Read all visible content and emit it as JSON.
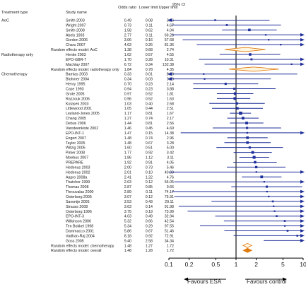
{
  "chart_data": {
    "type": "forest",
    "x_scale": "log",
    "xlim": [
      0.1,
      10
    ],
    "x_ticks": [
      0.1,
      0.2,
      0.5,
      1,
      2,
      5,
      10
    ],
    "x_tick_labels": [
      "0.1",
      "0.2",
      "0.5",
      "1",
      "2",
      "5",
      "10"
    ],
    "reference_line": 1,
    "header": {
      "ci_label": "95% CI",
      "group": "Treatment type",
      "study": "Study name",
      "or": "Odds ratio",
      "lower": "Lower limit",
      "upper": "Upper limit"
    },
    "left_label": "Favours ESA",
    "right_label": "Favours control",
    "colors": {
      "study": "#1f2f9a",
      "summary": "#e07b10",
      "text": "#1a1a1a",
      "summary_fill": "#fff6e0"
    },
    "rows": [
      {
        "kind": "study",
        "group": "AoC",
        "name": "Smith 2003",
        "or": "0.49",
        "lo": "0.08",
        "hi": "3.16",
        "w": 0.45
      },
      {
        "kind": "study",
        "name": "Wright 2007",
        "or": "0.73",
        "lo": "0.11",
        "hi": "4.67",
        "w": 0.55
      },
      {
        "kind": "study",
        "name": "Smith 2008",
        "or": "1.58",
        "lo": "0.62",
        "hi": "4.04",
        "w": 0.9
      },
      {
        "kind": "study",
        "name": "Abels 1993",
        "or": "2.77",
        "lo": "0.11",
        "hi": "69.26",
        "w": 0.35
      },
      {
        "kind": "study",
        "name": "Gordon 2006",
        "or": "3.06",
        "lo": "0.16",
        "hi": "57.68",
        "w": 0.35
      },
      {
        "kind": "study",
        "name": "Charu 2007",
        "or": "4.63",
        "lo": "0.26",
        "hi": "81.36",
        "w": 0.35
      },
      {
        "kind": "summary",
        "name": "Random effects model: AoC",
        "or": "1.38",
        "lo": "0.68",
        "hi": "2.74"
      },
      {
        "kind": "study",
        "group": "Radiotherapy only",
        "name": "Henke 2003",
        "or": "1.62",
        "lo": "0.57",
        "hi": "4.55",
        "w": 0.9
      },
      {
        "kind": "study",
        "name": "EPO-GBR-7",
        "or": "1.70",
        "lo": "0.28",
        "hi": "10.31",
        "w": 0.6
      },
      {
        "kind": "study",
        "name": "Machtay 2007",
        "or": "6.72",
        "lo": "0.34",
        "hi": "132.38",
        "w": 0.35
      },
      {
        "kind": "summary",
        "name": "Random effects model: radiotherapy only",
        "or": "1.84",
        "lo": "0.78",
        "hi": "4.35"
      },
      {
        "kind": "study",
        "group": "Chemotherapy",
        "name": "Bamias 2003",
        "or": "0.33",
        "lo": "0.01",
        "hi": "8.20",
        "w": 0.35
      },
      {
        "kind": "study",
        "name": "Blohmer 2004",
        "or": "0.34",
        "lo": "0.03",
        "hi": "3.30",
        "w": 0.4
      },
      {
        "kind": "study",
        "name": "Henry 1995",
        "or": "0.70",
        "lo": "0.23",
        "hi": "2.14",
        "w": 0.7
      },
      {
        "kind": "study",
        "name": "Case 1993",
        "or": "0.94",
        "lo": "0.23",
        "hi": "3.88",
        "w": 0.6
      },
      {
        "kind": "study",
        "name": "Grote 2005",
        "or": "0.97",
        "lo": "0.52",
        "hi": "1.81",
        "w": 1.0
      },
      {
        "kind": "study",
        "name": "Razzouk 2006",
        "or": "0.96",
        "lo": "0.52",
        "hi": "1.63",
        "w": 1.0
      },
      {
        "kind": "study",
        "name": "Kotasek 2003",
        "or": "1.03",
        "lo": "0.40",
        "hi": "2.68",
        "w": 0.8
      },
      {
        "kind": "study",
        "name": "Littlewood 2001",
        "or": "1.05",
        "lo": "0.44",
        "hi": "2.51",
        "w": 0.8
      },
      {
        "kind": "study",
        "name": "Leyland-Jones 2005",
        "or": "1.17",
        "lo": "0.81",
        "hi": "1.67",
        "w": 1.3
      },
      {
        "kind": "study",
        "name": "Chang 2005",
        "or": "1.27",
        "lo": "0.74",
        "hi": "2.17",
        "w": 1.0
      },
      {
        "kind": "study",
        "name": "Debus 2006",
        "or": "1.44",
        "lo": "0.81",
        "hi": "2.56",
        "w": 1.0
      },
      {
        "kind": "study",
        "name": "Vansteenkiste 2002",
        "or": "1.46",
        "lo": "0.45",
        "hi": "4.69",
        "w": 0.7
      },
      {
        "kind": "study",
        "name": "EPO-INT-1",
        "or": "1.47",
        "lo": "0.15",
        "hi": "14.38",
        "w": 0.4
      },
      {
        "kind": "study",
        "name": "Engert 2007",
        "or": "1.48",
        "lo": "0.74",
        "hi": "2.96",
        "w": 0.9
      },
      {
        "kind": "study",
        "name": "Taylor 2005",
        "or": "1.48",
        "lo": "0.67",
        "hi": "3.28",
        "w": 0.9
      },
      {
        "kind": "study",
        "name": "Witzig 2005",
        "or": "1.60",
        "lo": "0.51",
        "hi": "5.00",
        "w": 0.7
      },
      {
        "kind": "study",
        "name": "Pirker 2008",
        "or": "1.77",
        "lo": "0.92",
        "hi": "3.42",
        "w": 1.0
      },
      {
        "kind": "study",
        "name": "Moebus 2007",
        "or": "1.86",
        "lo": "1.12",
        "hi": "3.11",
        "w": 1.1
      },
      {
        "kind": "study",
        "name": "PREPARE",
        "or": "1.92",
        "lo": "0.91",
        "hi": "4.05",
        "w": 0.9
      },
      {
        "kind": "study",
        "name": "Hedenus 2003",
        "or": "2.00",
        "lo": "0.73",
        "hi": "5.46",
        "w": 0.8
      },
      {
        "kind": "study",
        "name": "Hedenus 2002",
        "or": "2.01",
        "lo": "0.10",
        "hi": "40.00",
        "w": 0.35
      },
      {
        "kind": "study",
        "name": "Aapro 2008a",
        "or": "2.41",
        "lo": "1.22",
        "hi": "4.76",
        "w": 1.0
      },
      {
        "kind": "study",
        "name": "Thatcher 1999",
        "or": "2.63",
        "lo": "0.12",
        "hi": "56.05",
        "w": 0.35
      },
      {
        "kind": "study",
        "name": "Thomas 2008",
        "or": "2.87",
        "lo": "0.85",
        "hi": "9.66",
        "w": 0.7
      },
      {
        "kind": "study",
        "name": "Throuvalas 2000",
        "or": "2.89",
        "lo": "0.11",
        "hi": "74.17",
        "w": 0.35
      },
      {
        "kind": "study",
        "name": "Osterborg 2005",
        "or": "3.07",
        "lo": "0.12",
        "hi": "75.91",
        "w": 0.35
      },
      {
        "kind": "study",
        "name": "Savonije 2005",
        "or": "3.53",
        "lo": "0.43",
        "hi": "29.11",
        "w": 0.5
      },
      {
        "kind": "study",
        "name": "Strauss 2008",
        "or": "3.63",
        "lo": "0.14",
        "hi": "91.98",
        "w": 0.35
      },
      {
        "kind": "study",
        "name": "Osterborg 1996",
        "or": "3.75",
        "lo": "0.19",
        "hi": "73.99",
        "w": 0.35
      },
      {
        "kind": "study",
        "name": "EPO-INT-3",
        "or": "4.03",
        "lo": "0.49",
        "hi": "32.94",
        "w": 0.5
      },
      {
        "kind": "study",
        "name": "Wilkinson 2006",
        "or": "5.32",
        "lo": "0.66",
        "hi": "42.54",
        "w": 0.5
      },
      {
        "kind": "study",
        "name": "Ten Bokkel 1998",
        "or": "5.34",
        "lo": "0.29",
        "hi": "97.55",
        "w": 0.35
      },
      {
        "kind": "study",
        "name": "Dammacco 2001",
        "or": "5.86",
        "lo": "0.67",
        "hi": "51.46",
        "w": 0.5
      },
      {
        "kind": "study",
        "name": "Vadhan-Raj 2004",
        "or": "8.18",
        "lo": "0.92",
        "hi": "72.91",
        "w": 0.5
      },
      {
        "kind": "study",
        "name": "Goss 2005",
        "or": "9.40",
        "lo": "2.58",
        "hi": "34.34",
        "w": 0.7
      },
      {
        "kind": "summary",
        "name": "Random effects model: chemotherapy",
        "or": "1.48",
        "lo": "1.27",
        "hi": "1.72"
      },
      {
        "kind": "summary",
        "name": "Random effects model: overall",
        "or": "1.48",
        "lo": "1.28",
        "hi": "1.72",
        "filled": true
      }
    ]
  }
}
